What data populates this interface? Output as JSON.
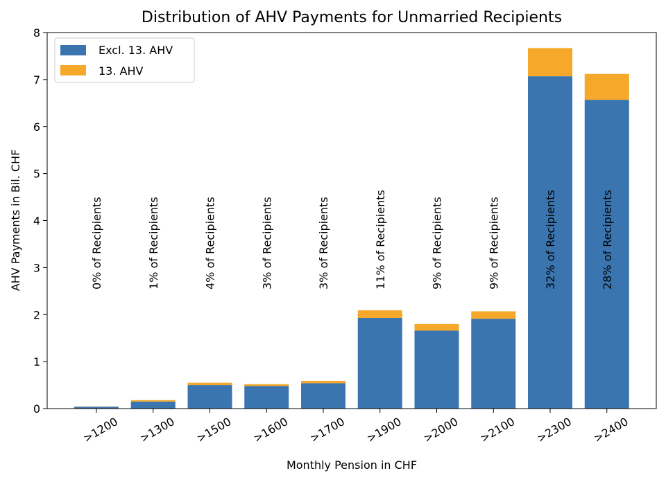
{
  "chart_data": {
    "type": "bar",
    "stacked": true,
    "title": "Distribution of AHV Payments for Unmarried Recipients",
    "xlabel": "Monthly Pension in CHF",
    "ylabel": "AHV Payments in Bil. CHF",
    "ylim": [
      0,
      8
    ],
    "yticks": [
      "0",
      "1",
      "2",
      "3",
      "4",
      "5",
      "6",
      "7",
      "8"
    ],
    "categories": [
      ">1200",
      ">1300",
      ">1500",
      ">1600",
      ">1700",
      ">1900",
      ">2000",
      ">2100",
      ">2300",
      ">2400"
    ],
    "series": [
      {
        "name": "Excl. 13. AHV",
        "color": "#3a75b0",
        "values": [
          0.04,
          0.15,
          0.5,
          0.48,
          0.54,
          1.93,
          1.66,
          1.91,
          7.07,
          6.57
        ]
      },
      {
        "name": "13. AHV",
        "color": "#f5a82a",
        "values": [
          0.005,
          0.03,
          0.05,
          0.04,
          0.05,
          0.16,
          0.14,
          0.16,
          0.6,
          0.55
        ]
      }
    ],
    "annotations": [
      "0% of Recipients",
      "1% of Recipients",
      "4% of Recipients",
      "3% of Recipients",
      "3% of Recipients",
      "11% of Recipients",
      "9% of Recipients",
      "9% of Recipients",
      "32% of Recipients",
      "28% of Recipients"
    ],
    "legend_position": "top-left",
    "grid": false
  }
}
